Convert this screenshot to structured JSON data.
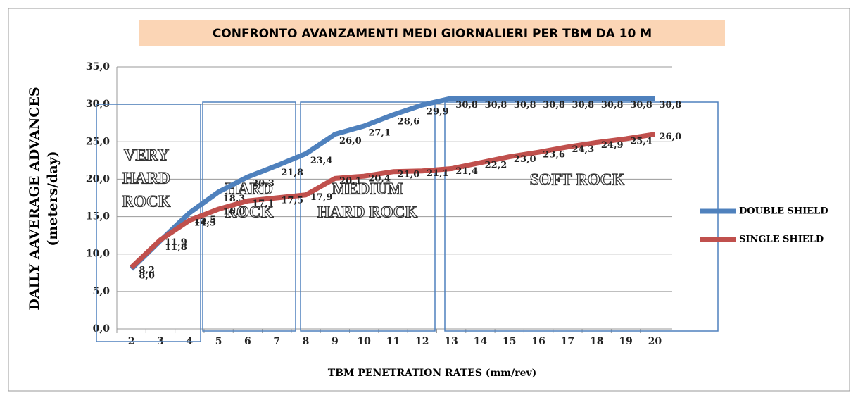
{
  "chart_data": {
    "type": "line",
    "title": "CONFRONTO AVANZAMENTI MEDI GIORNALIERI PER TBM DA 10 M",
    "x_label": "TBM PENETRATION RATES (mm/rev)",
    "y_label": [
      "DAILY AAVERAGE ADVANCES",
      "(meters/day)"
    ],
    "categories": [
      "2",
      "3",
      "4",
      "5",
      "6",
      "7",
      "8",
      "9",
      "10",
      "11",
      "12",
      "13",
      "14",
      "15",
      "16",
      "17",
      "18",
      "19",
      "20"
    ],
    "series": [
      {
        "name": "DOUBLE SHIELD",
        "color": "#4f81bd",
        "values": [
          8.0,
          11.8,
          15.5,
          18.3,
          20.3,
          21.8,
          23.4,
          26.0,
          27.1,
          28.6,
          29.9,
          30.8,
          30.8,
          30.8,
          30.8,
          30.8,
          30.8,
          30.8,
          30.8
        ],
        "value_labels": [
          "8,0",
          "11,8",
          "15,5",
          "18,3",
          "20,3",
          "21,8",
          "23,4",
          "26,0",
          "27,1",
          "28,6",
          "29,9",
          "30,8",
          "30,8",
          "30,8",
          "30,8",
          "30,8",
          "30,8",
          "30,8",
          "30,8"
        ]
      },
      {
        "name": "SINGLE SHIELD",
        "color": "#c0504d",
        "values": [
          8.2,
          11.9,
          14.5,
          16.0,
          17.1,
          17.5,
          17.9,
          20.1,
          20.4,
          21.0,
          21.1,
          21.4,
          22.2,
          23.0,
          23.6,
          24.3,
          24.9,
          25.4,
          26.0
        ],
        "value_labels": [
          "8,2",
          "11,9",
          "14,5",
          "16,0",
          "17,1",
          "17,5",
          "17,9",
          "20,1",
          "20,4",
          "21,0",
          "21,1",
          "21,4",
          "22,2",
          "23,0",
          "23,6",
          "24,3",
          "24,9",
          "25,4",
          "26,0"
        ]
      }
    ],
    "ylim": [
      0,
      35
    ],
    "yticks": [
      {
        "value": 0,
        "label": "0,0"
      },
      {
        "value": 5,
        "label": "5,0"
      },
      {
        "value": 10,
        "label": "10,0"
      },
      {
        "value": 15,
        "label": "15,0"
      },
      {
        "value": 20,
        "label": "20,0"
      },
      {
        "value": 25,
        "label": "25,0"
      },
      {
        "value": 30,
        "label": "30,0"
      },
      {
        "value": 35,
        "label": "35,0"
      }
    ],
    "grid": true,
    "legend": "right",
    "annotations": [
      [
        "VERY",
        "HARD",
        "ROCK"
      ],
      [
        "HARD",
        "ROCK"
      ],
      [
        "MEDIUM",
        "HARD ROCK"
      ],
      [
        "SOFT ROCK"
      ]
    ]
  }
}
